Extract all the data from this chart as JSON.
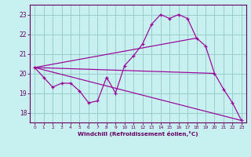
{
  "title": "",
  "xlabel": "Windchill (Refroidissement éolien,°C)",
  "bg_color": "#c8f0f0",
  "line_color": "#990099",
  "grid_color": "#99cccc",
  "axis_color": "#660066",
  "tick_color": "#660066",
  "xlim": [
    -0.5,
    23.5
  ],
  "ylim": [
    17.5,
    23.5
  ],
  "xticks": [
    0,
    1,
    2,
    3,
    4,
    5,
    6,
    7,
    8,
    9,
    10,
    11,
    12,
    13,
    14,
    15,
    16,
    17,
    18,
    19,
    20,
    21,
    22,
    23
  ],
  "yticks": [
    18,
    19,
    20,
    21,
    22,
    23
  ],
  "series1_x": [
    0,
    1,
    2,
    3,
    4,
    5,
    6,
    7,
    8,
    9,
    10,
    11,
    12,
    13,
    14,
    15,
    16,
    17,
    18,
    19,
    20,
    21,
    22,
    23
  ],
  "series1_y": [
    20.3,
    19.8,
    19.3,
    19.5,
    19.5,
    19.1,
    18.5,
    18.6,
    19.8,
    19.0,
    20.4,
    20.9,
    21.5,
    22.5,
    23.0,
    22.8,
    23.0,
    22.8,
    21.8,
    21.4,
    20.0,
    19.2,
    18.5,
    17.6
  ],
  "line2_x": [
    0,
    18
  ],
  "line2_y": [
    20.3,
    21.8
  ],
  "line3_x": [
    0,
    20
  ],
  "line3_y": [
    20.3,
    20.0
  ],
  "line4_x": [
    0,
    23
  ],
  "line4_y": [
    20.3,
    17.6
  ]
}
